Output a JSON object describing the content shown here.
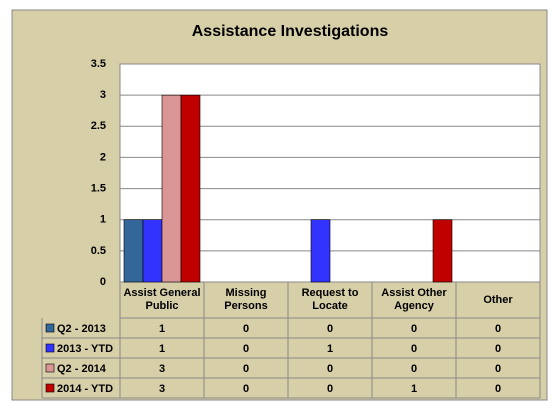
{
  "chart_data": {
    "type": "bar",
    "title": "Assistance Investigations",
    "categories": [
      "Assist General Public",
      "Missing Persons",
      "Request to Locate",
      "Assist Other Agency",
      "Other"
    ],
    "series": [
      {
        "name": "Q2 - 2013",
        "color": "#336699",
        "values": [
          1,
          0,
          0,
          0,
          0
        ]
      },
      {
        "name": "2013 - YTD",
        "color": "#3333ff",
        "values": [
          1,
          0,
          1,
          0,
          0
        ]
      },
      {
        "name": "Q2 - 2014",
        "color": "#d99694",
        "values": [
          3,
          0,
          0,
          0,
          0
        ]
      },
      {
        "name": "2014 - YTD",
        "color": "#c00000",
        "values": [
          3,
          0,
          0,
          1,
          0
        ]
      }
    ],
    "ylim": [
      0,
      3.5
    ],
    "yticks": [
      0,
      0.5,
      1,
      1.5,
      2,
      2.5,
      3,
      3.5
    ],
    "grid": true
  }
}
